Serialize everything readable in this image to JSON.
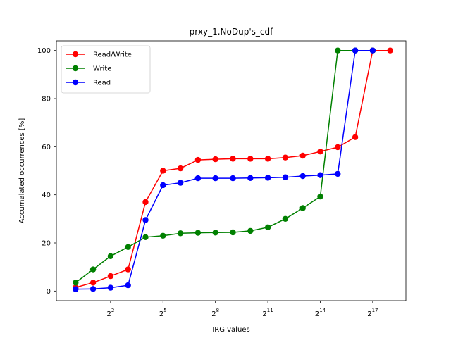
{
  "chart_data": {
    "type": "line",
    "title": "prxy_1.NoDup's_cdf",
    "xlabel": "IRG values",
    "ylabel": "Accumalated occurrences [%]",
    "x_scale": "log2",
    "x": [
      1,
      2,
      4,
      8,
      16,
      32,
      64,
      128,
      256,
      512,
      1024,
      2048,
      4096,
      8192,
      16384,
      32768,
      65536,
      131072,
      262144
    ],
    "xlim_log2": [
      -1.1,
      18.9
    ],
    "x_ticks": [
      {
        "base": "2",
        "exp": "2",
        "log2": 2
      },
      {
        "base": "2",
        "exp": "5",
        "log2": 5
      },
      {
        "base": "2",
        "exp": "8",
        "log2": 8
      },
      {
        "base": "2",
        "exp": "11",
        "log2": 11
      },
      {
        "base": "2",
        "exp": "14",
        "log2": 14
      },
      {
        "base": "2",
        "exp": "17",
        "log2": 17
      }
    ],
    "ylim": [
      -4,
      104
    ],
    "y_ticks": [
      "0",
      "20",
      "40",
      "60",
      "80",
      "100"
    ],
    "grid": false,
    "legend_position": "upper-left",
    "series": [
      {
        "name": "Read/Write",
        "color": "#ff0000",
        "values": [
          1.5,
          3.5,
          6.2,
          9,
          37,
          50,
          51,
          54.5,
          54.8,
          55,
          55,
          55,
          55.5,
          56.3,
          58,
          59.8,
          64,
          100,
          100
        ]
      },
      {
        "name": "Write",
        "color": "#008000",
        "values": [
          3.5,
          9,
          14.5,
          18.3,
          22.4,
          23,
          24,
          24.2,
          24.3,
          24.4,
          25,
          26.5,
          30,
          34.5,
          39.3,
          100,
          100,
          100,
          null
        ]
      },
      {
        "name": "Read",
        "color": "#0000ff",
        "values": [
          0.8,
          0.9,
          1.4,
          2.4,
          29.5,
          44,
          45,
          46.9,
          46.9,
          46.9,
          47,
          47.1,
          47.3,
          47.8,
          48.2,
          48.7,
          100,
          100,
          null
        ]
      }
    ]
  }
}
